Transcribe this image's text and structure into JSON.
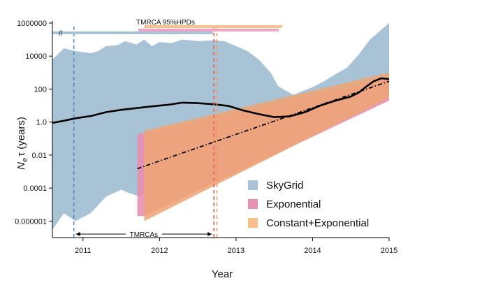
{
  "chart_data": {
    "type": "area",
    "xlabel": "Year",
    "ylabel": "N_e τ (years)",
    "ylabel_main": "N",
    "ylabel_sub": "e",
    "ylabel_rest": "τ (years)",
    "log_y": true,
    "xlim": [
      2010.6,
      2015.0
    ],
    "ylim": [
      1e-07,
      1000000.0
    ],
    "x_ticks": [
      {
        "value": 2011,
        "label": "2011"
      },
      {
        "value": 2012,
        "label": "2012"
      },
      {
        "value": 2013,
        "label": "2013"
      },
      {
        "value": 2014,
        "label": "2014"
      },
      {
        "value": 2015,
        "label": "2015"
      }
    ],
    "y_ticks": [
      {
        "value": 1000000.0,
        "label": "1000000"
      },
      {
        "value": 10000.0,
        "label": "10000"
      },
      {
        "value": 100,
        "label": "100"
      },
      {
        "value": 1,
        "label": "1.0"
      },
      {
        "value": 0.01,
        "label": "0.01"
      },
      {
        "value": 0.0001,
        "label": "0.0001"
      },
      {
        "value": 1e-06,
        "label": "0.000001"
      }
    ],
    "series": [
      {
        "name": "SkyGrid",
        "color": "#a9c3d6",
        "upper_x": [
          2010.6,
          2010.75,
          2010.9,
          2011.1,
          2011.2,
          2011.3,
          2011.45,
          2011.55,
          2011.7,
          2011.8,
          2011.9,
          2012.0,
          2012.15,
          2012.3,
          2012.5,
          2012.7,
          2012.85,
          2013.0,
          2013.15,
          2013.3,
          2013.45,
          2013.55,
          2013.65,
          2013.75,
          2013.85,
          2014.0,
          2014.15,
          2014.3,
          2014.45,
          2014.6,
          2014.75,
          2014.9,
          2015.0
        ],
        "upper_y": [
          6000,
          30000,
          20000,
          15000,
          20000,
          40000,
          45000,
          80000,
          50000,
          100000,
          40000,
          70000,
          60000,
          100000,
          80000,
          90000,
          80000,
          40000,
          20000,
          6000,
          1000,
          150,
          80,
          45,
          70,
          130,
          300,
          800,
          2000,
          12000,
          100000,
          400000,
          1000000
        ],
        "lower_x": [
          2010.6,
          2010.75,
          2010.9,
          2011.1,
          2011.3,
          2011.5,
          2011.6,
          2011.75,
          2011.85,
          2011.95,
          2012.1,
          2012.3,
          2012.5,
          2012.7,
          2012.9,
          2013.1,
          2013.3,
          2013.45,
          2013.6,
          2013.75,
          2013.85,
          2014.0,
          2014.15,
          2014.3,
          2014.5,
          2014.65,
          2014.8,
          2014.9,
          2015.0
        ],
        "lower_y": [
          3e-07,
          3e-06,
          1e-06,
          3e-06,
          3e-05,
          8e-05,
          5e-05,
          3e-05,
          8e-05,
          0.0008,
          0.004,
          0.006,
          0.012,
          0.025,
          0.04,
          0.07,
          0.1,
          0.13,
          0.12,
          0.13,
          0.15,
          0.3,
          1.0,
          3,
          6,
          12,
          60,
          150,
          30
        ],
        "median_x": [
          2010.6,
          2010.75,
          2010.9,
          2011.1,
          2011.3,
          2011.5,
          2011.7,
          2011.9,
          2012.1,
          2012.3,
          2012.5,
          2012.7,
          2012.9,
          2013.1,
          2013.3,
          2013.5,
          2013.7,
          2013.9,
          2014.1,
          2014.3,
          2014.5,
          2014.6,
          2014.7,
          2014.8,
          2014.9,
          2015.0
        ],
        "median_y": [
          0.9,
          1.2,
          1.7,
          2.3,
          4,
          5.5,
          7,
          9,
          11,
          15,
          14,
          12,
          9.5,
          5,
          3,
          2,
          2.2,
          4,
          10,
          20,
          35,
          60,
          140,
          300,
          450,
          400
        ]
      },
      {
        "name": "Exponential",
        "color": "#e98fb3",
        "band_x": [
          2011.71,
          2011.8,
          2015.0
        ],
        "band_upper_y": [
          0.2,
          0.2,
          500
        ],
        "band_lower_y": [
          2e-06,
          2e-06,
          20
        ]
      },
      {
        "name": "Constant+Exponential",
        "color": "#f7be86",
        "band_x": [
          2011.8,
          2015.0
        ],
        "band_upper_y": [
          0.3,
          1000
        ],
        "band_lower_y": [
          1e-06,
          30
        ],
        "median_x": [
          2011.71,
          2015.0
        ],
        "median_y": [
          0.0015,
          300
        ]
      }
    ],
    "legend": {
      "placement": "bottom-right",
      "entries": [
        {
          "label": "SkyGrid",
          "color": "#a9c3d6"
        },
        {
          "label": "Exponential",
          "color": "#e98fb3"
        },
        {
          "label": "Constant+Exponential",
          "color": "#f7be86"
        }
      ]
    },
    "annotations": {
      "hpd_title": "TMRCA 95%HPDs",
      "tmrca_label": "TMRCAs",
      "axis_break_mark": "//",
      "hpd_bars": [
        {
          "series": "SkyGrid",
          "color": "#a9c3d6",
          "from": 2010.6,
          "to": 2012.7
        },
        {
          "series": "Exponential",
          "color": "#f2a3c2",
          "from": 2011.72,
          "to": 2013.56
        },
        {
          "series": "Constant+Exponential",
          "color": "#f5c48f",
          "from": 2011.8,
          "to": 2013.6
        }
      ],
      "tmrca_lines": [
        {
          "series": "SkyGrid",
          "color": "#4a86c5",
          "x": 2010.88
        },
        {
          "series": "Exponential",
          "color": "#e85a5a",
          "x": 2012.71
        },
        {
          "series": "Constant+Exponential",
          "color": "#f0955a",
          "x": 2012.75
        }
      ],
      "tmrca_arrow": {
        "from": 2010.88,
        "to": 2012.71
      }
    }
  }
}
